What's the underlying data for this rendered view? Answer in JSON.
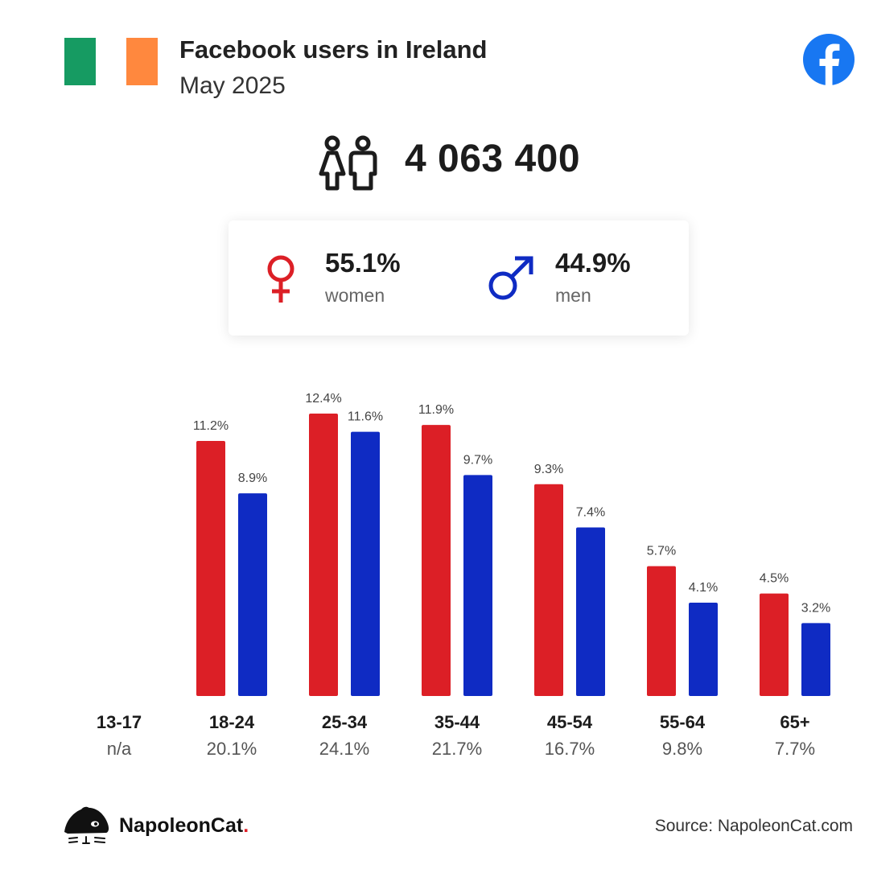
{
  "header": {
    "title": "Facebook users in Ireland",
    "subtitle": "May 2025",
    "flag_colors": [
      "#169b62",
      "#ffffff",
      "#ff883e"
    ],
    "brand_icon": "facebook-logo-icon"
  },
  "summary": {
    "total_users": "4 063 400",
    "icon": "people-icon"
  },
  "gender": {
    "women_pct": "55.1%",
    "women_label": "women",
    "men_pct": "44.9%",
    "men_label": "men"
  },
  "colors": {
    "women": "#dc1f26",
    "men": "#0f2bc3",
    "facebook": "#1877f2",
    "napoleon_red": "#e01f28"
  },
  "chart_data": {
    "type": "bar",
    "categories": [
      "13-17",
      "18-24",
      "25-34",
      "35-44",
      "45-54",
      "55-64",
      "65+"
    ],
    "category_totals": [
      "n/a",
      "20.1%",
      "24.1%",
      "21.7%",
      "16.7%",
      "9.8%",
      "7.7%"
    ],
    "series": [
      {
        "name": "women",
        "values": [
          null,
          11.2,
          12.4,
          11.9,
          9.3,
          5.7,
          4.5
        ],
        "labels": [
          "",
          "11.2%",
          "12.4%",
          "11.9%",
          "9.3%",
          "5.7%",
          "4.5%"
        ]
      },
      {
        "name": "men",
        "values": [
          null,
          8.9,
          11.6,
          9.7,
          7.4,
          4.1,
          3.2
        ],
        "labels": [
          "",
          "8.9%",
          "11.6%",
          "9.7%",
          "7.4%",
          "4.1%",
          "3.2%"
        ]
      }
    ],
    "ylim": [
      0,
      12.4
    ],
    "grid": false
  },
  "footer": {
    "brand": "NapoleonCat",
    "brand_dot": ".",
    "source": "Source: NapoleonCat.com",
    "logo_icon": "napoleoncat-logo-icon"
  }
}
